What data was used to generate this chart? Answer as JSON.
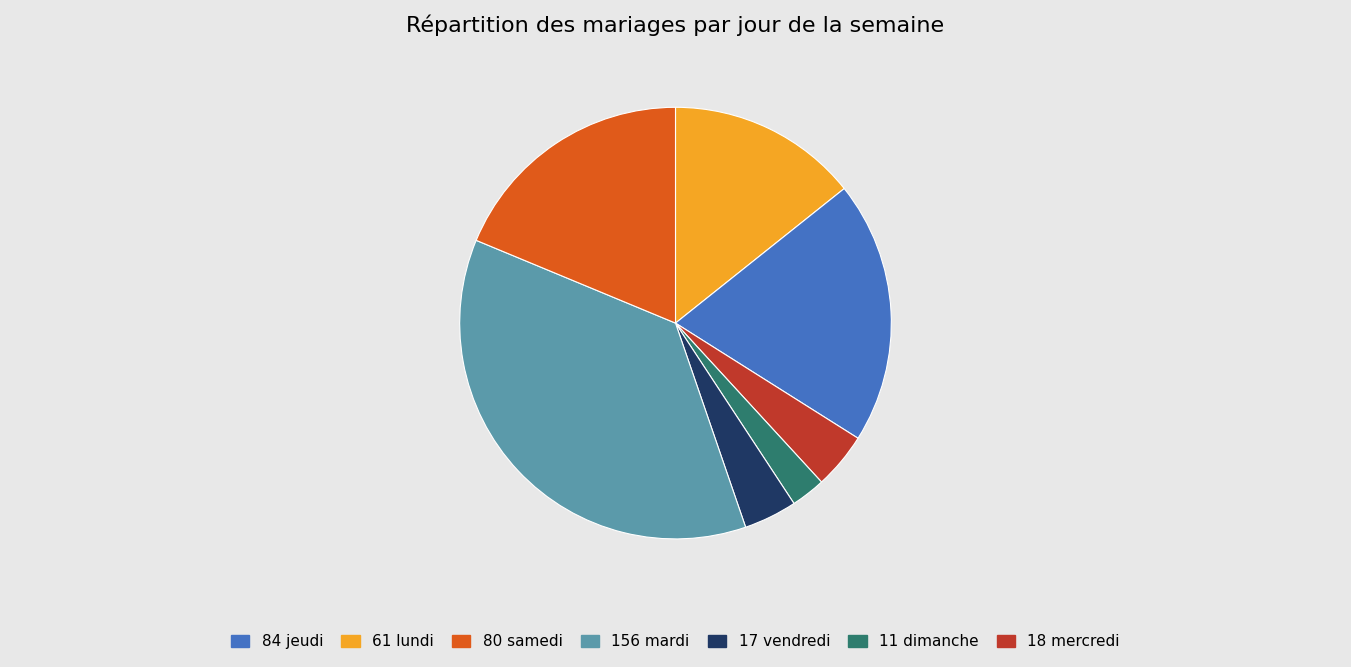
{
  "title": "Répartition des mariages par jour de la semaine",
  "slices": [
    {
      "label": "61 lundi",
      "value": 61,
      "color": "#f5a623"
    },
    {
      "label": "84 jeudi",
      "value": 84,
      "color": "#4472c4"
    },
    {
      "label": "18 mercredi",
      "value": 18,
      "color": "#c0392b"
    },
    {
      "label": "11 dimanche",
      "value": 11,
      "color": "#2e7d6e"
    },
    {
      "label": "17 vendredi",
      "value": 17,
      "color": "#1f3864"
    },
    {
      "label": "156 mardi",
      "value": 156,
      "color": "#5b9aaa"
    },
    {
      "label": "80 samedi",
      "value": 80,
      "color": "#e05a1a"
    }
  ],
  "legend_order": [
    {
      "label": "84 jeudi",
      "color": "#4472c4"
    },
    {
      "label": "61 lundi",
      "color": "#f5a623"
    },
    {
      "label": "80 samedi",
      "color": "#e05a1a"
    },
    {
      "label": "156 mardi",
      "color": "#5b9aaa"
    },
    {
      "label": "17 vendredi",
      "color": "#1f3864"
    },
    {
      "label": "11 dimanche",
      "color": "#2e7d6e"
    },
    {
      "label": "18 mercredi",
      "color": "#c0392b"
    }
  ],
  "startangle": 90,
  "background_color": "#e8e8e8",
  "title_fontsize": 16,
  "legend_fontsize": 11
}
